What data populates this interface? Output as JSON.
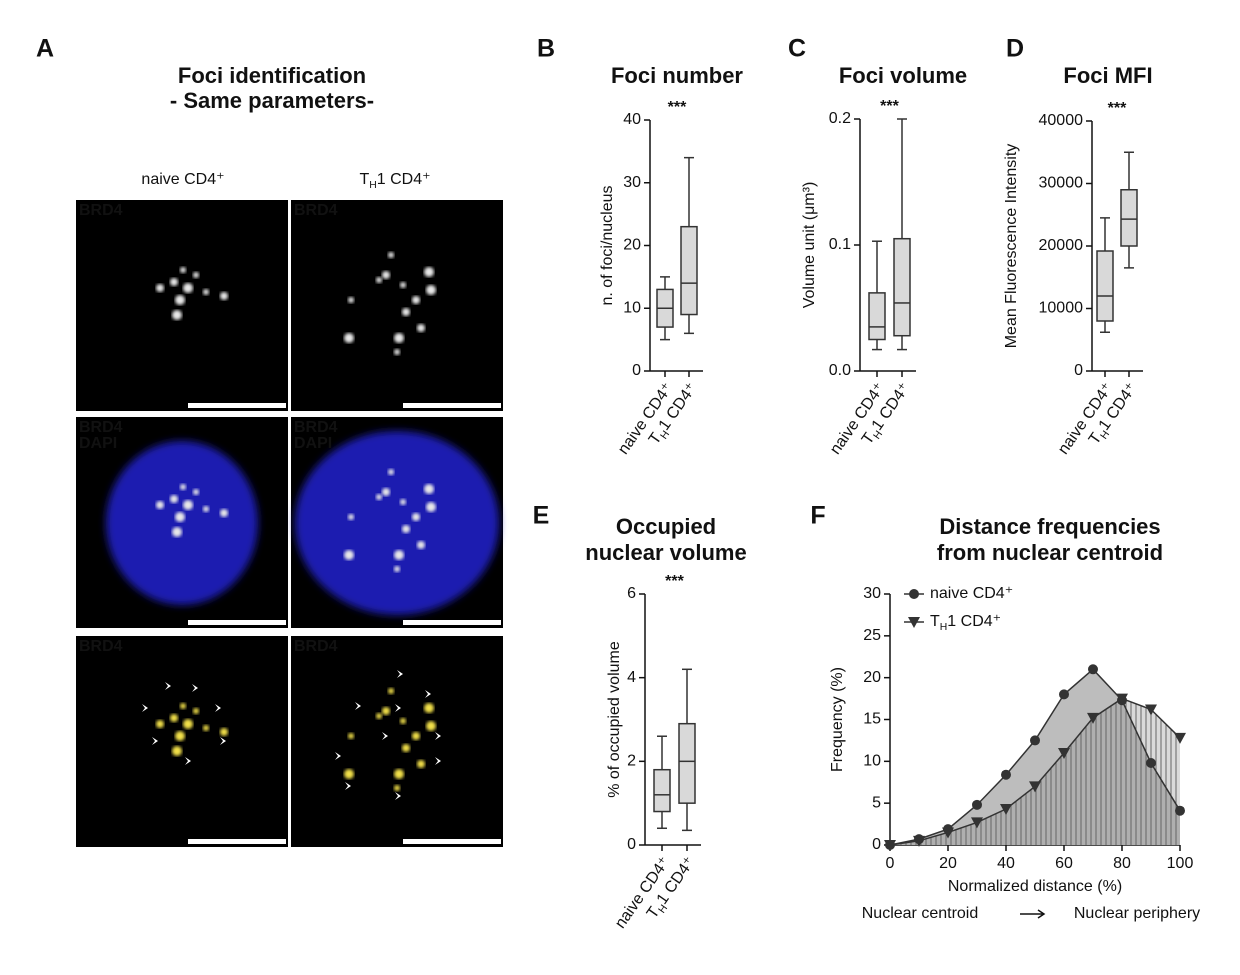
{
  "panel_letters": [
    "A",
    "B",
    "C",
    "D",
    "E",
    "F"
  ],
  "panel_a": {
    "title": "Foci identification",
    "subtitle": "- Same parameters-",
    "columns": [
      [
        "naive CD4⁺"
      ],
      [
        "T",
        "H",
        "1 CD4⁺"
      ]
    ],
    "channels": {
      "brd4": "BRD4",
      "dapi": "DAPI"
    }
  },
  "chart_data": [
    {
      "type": "box",
      "title": "Foci number",
      "annotation": "***",
      "ylabel": "n. of foci/nucleus",
      "color": "#d9d9d9",
      "categories": [
        [
          "naive CD4⁺"
        ],
        [
          "T",
          "H",
          "1 CD4⁺"
        ]
      ],
      "boxes": [
        {
          "min": 5,
          "q1": 7,
          "median": 10,
          "q3": 13,
          "max": 15
        },
        {
          "min": 6,
          "q1": 9,
          "median": 14,
          "q3": 23,
          "max": 34
        }
      ],
      "ylim": [
        0,
        40
      ],
      "yticks": [
        0,
        10,
        20,
        30,
        40
      ]
    },
    {
      "type": "box",
      "title": "Foci volume",
      "annotation": "***",
      "ylabel": "Volume unit (μm³)",
      "color": "#d9d9d9",
      "categories": [
        [
          "naive CD4⁺"
        ],
        [
          "T",
          "H",
          "1 CD4⁺"
        ]
      ],
      "boxes": [
        {
          "min": 0.017,
          "q1": 0.025,
          "median": 0.035,
          "q3": 0.062,
          "max": 0.103
        },
        {
          "min": 0.017,
          "q1": 0.028,
          "median": 0.054,
          "q3": 0.105,
          "max": 0.2
        }
      ],
      "ylim": [
        0,
        0.2
      ],
      "yticks": [
        {
          "value": 0,
          "label": "0.0"
        },
        0.1,
        0.2
      ]
    },
    {
      "type": "box",
      "title": "Foci MFI",
      "annotation": "***",
      "ylabel": "Mean Fluorescence Intensity",
      "color": "#d9d9d9",
      "categories": [
        [
          "naive CD4⁺"
        ],
        [
          "T",
          "H",
          "1 CD4⁺"
        ]
      ],
      "boxes": [
        {
          "min": 6200,
          "q1": 8000,
          "median": 12000,
          "q3": 19200,
          "max": 24500
        },
        {
          "min": 16500,
          "q1": 20000,
          "median": 24300,
          "q3": 29000,
          "max": 35000
        }
      ],
      "ylim": [
        0,
        40000
      ],
      "yticks": [
        0,
        10000,
        20000,
        30000,
        40000
      ]
    },
    {
      "type": "box",
      "title": [
        "Occupied",
        "nuclear volume"
      ],
      "annotation": "***",
      "ylabel": "% of occupied volume",
      "color": "#d9d9d9",
      "categories": [
        [
          "naive CD4⁺"
        ],
        [
          "T",
          "H",
          "1 CD4⁺"
        ]
      ],
      "boxes": [
        {
          "min": 0.4,
          "q1": 0.8,
          "median": 1.2,
          "q3": 1.8,
          "max": 2.6
        },
        {
          "min": 0.35,
          "q1": 1.0,
          "median": 2.0,
          "q3": 2.9,
          "max": 4.2
        }
      ],
      "ylim": [
        0,
        6
      ],
      "yticks": [
        0,
        2,
        4,
        6
      ]
    },
    {
      "type": "area",
      "title": [
        "Distance frequencies",
        "from nuclear centroid"
      ],
      "xlabel": "Normalized distance (%)",
      "ylabel": "Frequency (%)",
      "x": [
        0,
        10,
        20,
        30,
        40,
        50,
        60,
        70,
        80,
        90,
        100
      ],
      "series": [
        {
          "name": [
            "naive CD4⁺"
          ],
          "color": "#bdbdbd",
          "marker": "circle",
          "values": [
            0,
            0.7,
            1.9,
            4.8,
            8.4,
            12.5,
            18,
            21,
            17.3,
            9.8,
            4.1
          ]
        },
        {
          "name": [
            "T",
            "H",
            "1 CD4⁺"
          ],
          "color": "#7a7a7a",
          "marker": "triangle",
          "values": [
            0,
            0.5,
            1.5,
            2.7,
            4.3,
            7,
            11,
            15.2,
            17.5,
            16.2,
            12.8
          ]
        }
      ],
      "xlim": [
        0,
        100
      ],
      "xticks": [
        0,
        20,
        40,
        60,
        80,
        100
      ],
      "ylim": [
        0,
        30
      ],
      "yticks": [
        0,
        5,
        10,
        15,
        20,
        25,
        30
      ],
      "legend": "upper-left"
    }
  ],
  "footer": {
    "left": "Nuclear centroid",
    "right": "Nuclear periphery"
  }
}
